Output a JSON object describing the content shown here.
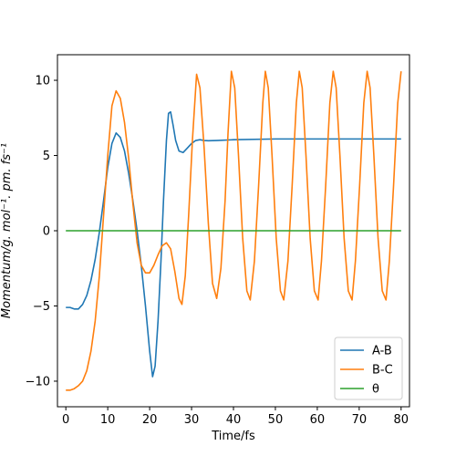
{
  "chart_data": {
    "type": "line",
    "xlabel": "Time/fs",
    "ylabel": "Momentum/g. mol⁻¹. pm. fs⁻¹",
    "xlim": [
      -2,
      82
    ],
    "ylim": [
      -11.7,
      11.7
    ],
    "xticks": [
      0,
      10,
      20,
      30,
      40,
      50,
      60,
      70,
      80
    ],
    "yticks": [
      -10,
      -5,
      0,
      5,
      10
    ],
    "grid": false,
    "legend_position": "bottom-right",
    "series": [
      {
        "name": "A-B",
        "color": "#1f77b4",
        "points": [
          [
            0,
            -5.1
          ],
          [
            1,
            -5.1
          ],
          [
            2,
            -5.2
          ],
          [
            3,
            -5.2
          ],
          [
            4,
            -4.9
          ],
          [
            5,
            -4.3
          ],
          [
            6,
            -3.3
          ],
          [
            7,
            -1.9
          ],
          [
            8,
            -0.1
          ],
          [
            9,
            2.0
          ],
          [
            10,
            4.2
          ],
          [
            11,
            5.8
          ],
          [
            12,
            6.5
          ],
          [
            13,
            6.2
          ],
          [
            14,
            5.3
          ],
          [
            15,
            3.8
          ],
          [
            16,
            2.0
          ],
          [
            17,
            0.0
          ],
          [
            18,
            -2.3
          ],
          [
            19,
            -5.0
          ],
          [
            20,
            -8.0
          ],
          [
            20.7,
            -9.7
          ],
          [
            21.3,
            -9.0
          ],
          [
            22,
            -6.0
          ],
          [
            22.7,
            -2.0
          ],
          [
            23.3,
            2.0
          ],
          [
            24,
            6.0
          ],
          [
            24.5,
            7.8
          ],
          [
            25,
            7.9
          ],
          [
            25.6,
            7.0
          ],
          [
            26.2,
            6.0
          ],
          [
            27,
            5.3
          ],
          [
            28,
            5.2
          ],
          [
            29,
            5.5
          ],
          [
            30,
            5.8
          ],
          [
            31,
            6.0
          ],
          [
            32,
            6.05
          ],
          [
            33,
            6.0
          ],
          [
            34,
            5.98
          ],
          [
            36,
            6.0
          ],
          [
            40,
            6.05
          ],
          [
            50,
            6.1
          ],
          [
            60,
            6.1
          ],
          [
            70,
            6.1
          ],
          [
            80,
            6.1
          ]
        ]
      },
      {
        "name": "B-C",
        "color": "#ff7f0e",
        "points": [
          [
            0,
            -10.6
          ],
          [
            1,
            -10.6
          ],
          [
            2,
            -10.5
          ],
          [
            3,
            -10.3
          ],
          [
            4,
            -10.0
          ],
          [
            5,
            -9.3
          ],
          [
            6,
            -8.0
          ],
          [
            7,
            -6.0
          ],
          [
            8,
            -3.0
          ],
          [
            9,
            1.0
          ],
          [
            10,
            5.0
          ],
          [
            11,
            8.3
          ],
          [
            12,
            9.3
          ],
          [
            13,
            8.8
          ],
          [
            14,
            7.2
          ],
          [
            15,
            4.8
          ],
          [
            16,
            1.8
          ],
          [
            17,
            -0.8
          ],
          [
            18,
            -2.3
          ],
          [
            19,
            -2.8
          ],
          [
            20,
            -2.8
          ],
          [
            21,
            -2.3
          ],
          [
            22,
            -1.6
          ],
          [
            23,
            -1.0
          ],
          [
            24,
            -0.8
          ],
          [
            25,
            -1.2
          ],
          [
            26,
            -2.7
          ],
          [
            27,
            -4.5
          ],
          [
            27.7,
            -4.9
          ],
          [
            28.5,
            -3.0
          ],
          [
            29.3,
            1.0
          ],
          [
            30.2,
            6.0
          ],
          [
            31.2,
            10.4
          ],
          [
            32,
            9.5
          ],
          [
            33,
            5.5
          ],
          [
            34,
            0.5
          ],
          [
            35,
            -3.5
          ],
          [
            36,
            -4.5
          ],
          [
            37,
            -2.5
          ],
          [
            38,
            2.0
          ],
          [
            38.7,
            6.5
          ],
          [
            39.5,
            10.6
          ],
          [
            40.3,
            9.5
          ],
          [
            41.2,
            5.0
          ],
          [
            42.2,
            -0.5
          ],
          [
            43.2,
            -4.0
          ],
          [
            44,
            -4.6
          ],
          [
            45,
            -2.0
          ],
          [
            46,
            3.0
          ],
          [
            47,
            8.5
          ],
          [
            47.6,
            10.6
          ],
          [
            48.3,
            9.5
          ],
          [
            49.2,
            5.0
          ],
          [
            50.2,
            -0.5
          ],
          [
            51.2,
            -4.0
          ],
          [
            52,
            -4.6
          ],
          [
            53,
            -2.0
          ],
          [
            54,
            3.0
          ],
          [
            55,
            8.5
          ],
          [
            55.7,
            10.6
          ],
          [
            56.4,
            9.5
          ],
          [
            57.3,
            5.0
          ],
          [
            58.3,
            -0.5
          ],
          [
            59.3,
            -4.0
          ],
          [
            60.2,
            -4.6
          ],
          [
            61,
            -2.0
          ],
          [
            62,
            3.0
          ],
          [
            63,
            8.5
          ],
          [
            63.8,
            10.6
          ],
          [
            64.5,
            9.5
          ],
          [
            65.4,
            5.0
          ],
          [
            66.4,
            -0.5
          ],
          [
            67.4,
            -4.0
          ],
          [
            68.3,
            -4.6
          ],
          [
            69.1,
            -2.0
          ],
          [
            70.1,
            3.0
          ],
          [
            71.1,
            8.5
          ],
          [
            71.9,
            10.6
          ],
          [
            72.6,
            9.5
          ],
          [
            73.5,
            5.0
          ],
          [
            74.5,
            -0.5
          ],
          [
            75.5,
            -4.0
          ],
          [
            76.4,
            -4.6
          ],
          [
            77.2,
            -2.0
          ],
          [
            78.2,
            3.0
          ],
          [
            79.2,
            8.5
          ],
          [
            80,
            10.6
          ]
        ]
      },
      {
        "name": "θ",
        "color": "#2ca02c",
        "points": [
          [
            0,
            0
          ],
          [
            80,
            0
          ]
        ]
      }
    ]
  }
}
